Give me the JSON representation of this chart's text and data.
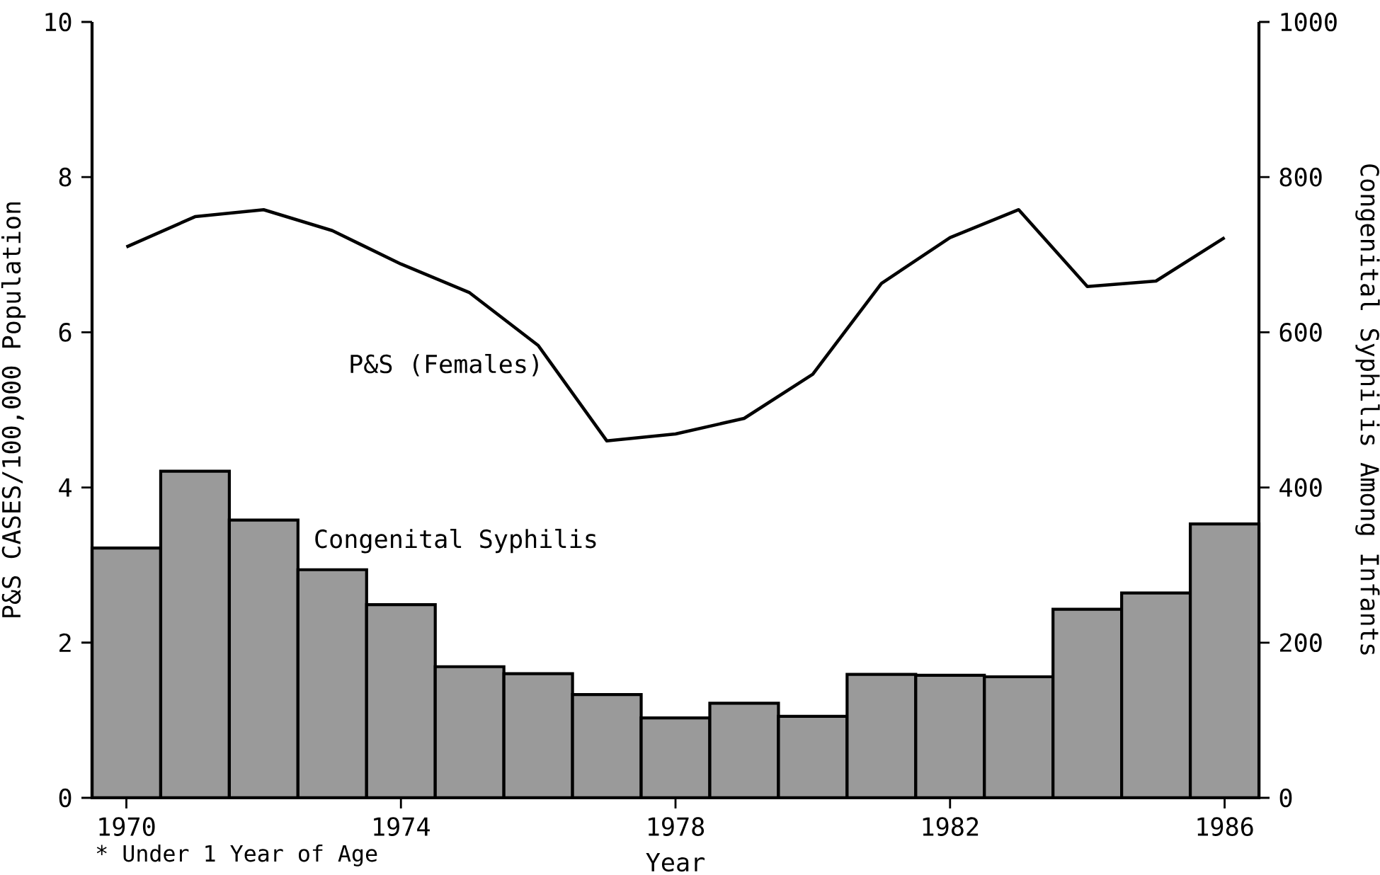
{
  "chart_data": {
    "type": "bar",
    "xlabel": "Year",
    "ylabel": "P&S CASES/100,000 Population",
    "y2label": "Congenital Syphilis Among Infants",
    "annotations": [
      "* Under 1 Year of Age"
    ],
    "x": [
      1970,
      1971,
      1972,
      1973,
      1974,
      1975,
      1976,
      1977,
      1978,
      1979,
      1980,
      1981,
      1982,
      1983,
      1984,
      1985,
      1986
    ],
    "xlim": [
      1969.5,
      1986.5
    ],
    "xticks": [
      1970,
      1974,
      1978,
      1982,
      1986
    ],
    "ylim": [
      0,
      10
    ],
    "yticks": [
      0,
      2,
      4,
      6,
      8,
      10
    ],
    "y2lim": [
      0,
      1000
    ],
    "y2ticks": [
      0,
      200,
      400,
      600,
      800,
      1000
    ],
    "series": [
      {
        "name": "Congenital Syphilis",
        "axis": "y2",
        "color": "#9a9a9a",
        "values": [
          322,
          421,
          358,
          294,
          249,
          169,
          160,
          133,
          103,
          122,
          105,
          159,
          158,
          156,
          243,
          264,
          353
        ]
      },
      {
        "name": "P&S (Females)",
        "type": "line",
        "color": "#000000",
        "values": [
          7.1,
          7.49,
          7.58,
          7.31,
          6.88,
          6.51,
          5.83,
          4.6,
          4.69,
          4.89,
          5.46,
          6.63,
          7.22,
          7.58,
          6.59,
          6.66,
          7.22
        ]
      }
    ]
  }
}
